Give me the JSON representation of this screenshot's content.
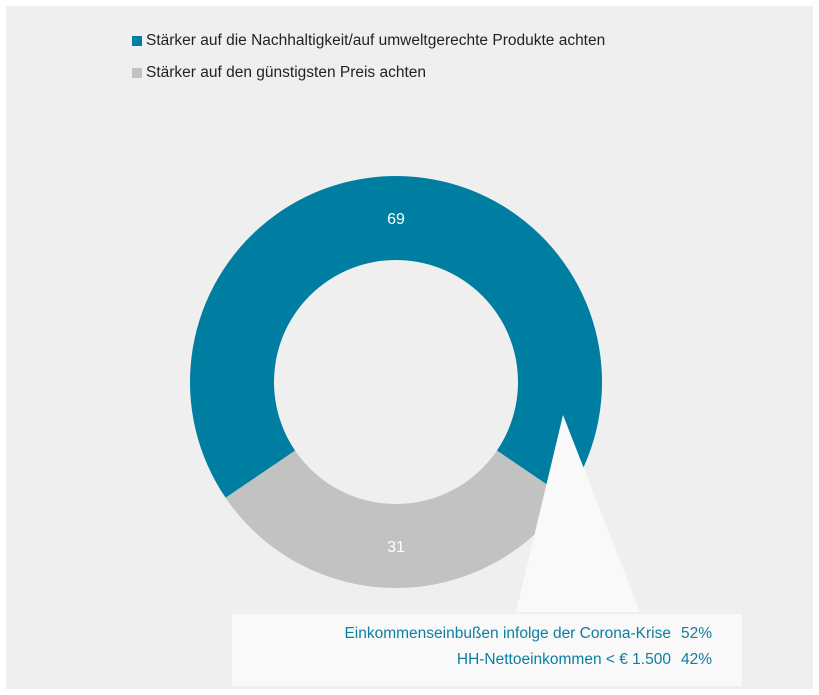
{
  "legend": [
    {
      "label": "Stärker auf die Nachhaltigkeit/auf umweltgerechte Produkte achten",
      "color": "#007ea1"
    },
    {
      "label": "Stärker auf den günstigsten Preis achten",
      "color": "#c2c2c2"
    }
  ],
  "chart_data": {
    "type": "pie",
    "variant": "donut",
    "categories": [
      "Stärker auf die Nachhaltigkeit/auf umweltgerechte Produkte achten",
      "Stärker auf den günstigsten Preis achten"
    ],
    "values": [
      69,
      31
    ],
    "data_labels": [
      "69",
      "31"
    ],
    "colors": [
      "#007ea1",
      "#c2c2c2"
    ],
    "legend_position": "top-left"
  },
  "callout": {
    "lines": [
      {
        "text": "Einkommenseinbußen infolge der Corona-Krise",
        "value": "52%"
      },
      {
        "text": "HH-Nettoeinkommen < € 1.500",
        "value": "42%"
      }
    ]
  },
  "colors": {
    "background": "#efefef",
    "callout_text": "#0a7fa1",
    "callout_box": "#f9f9f9"
  }
}
